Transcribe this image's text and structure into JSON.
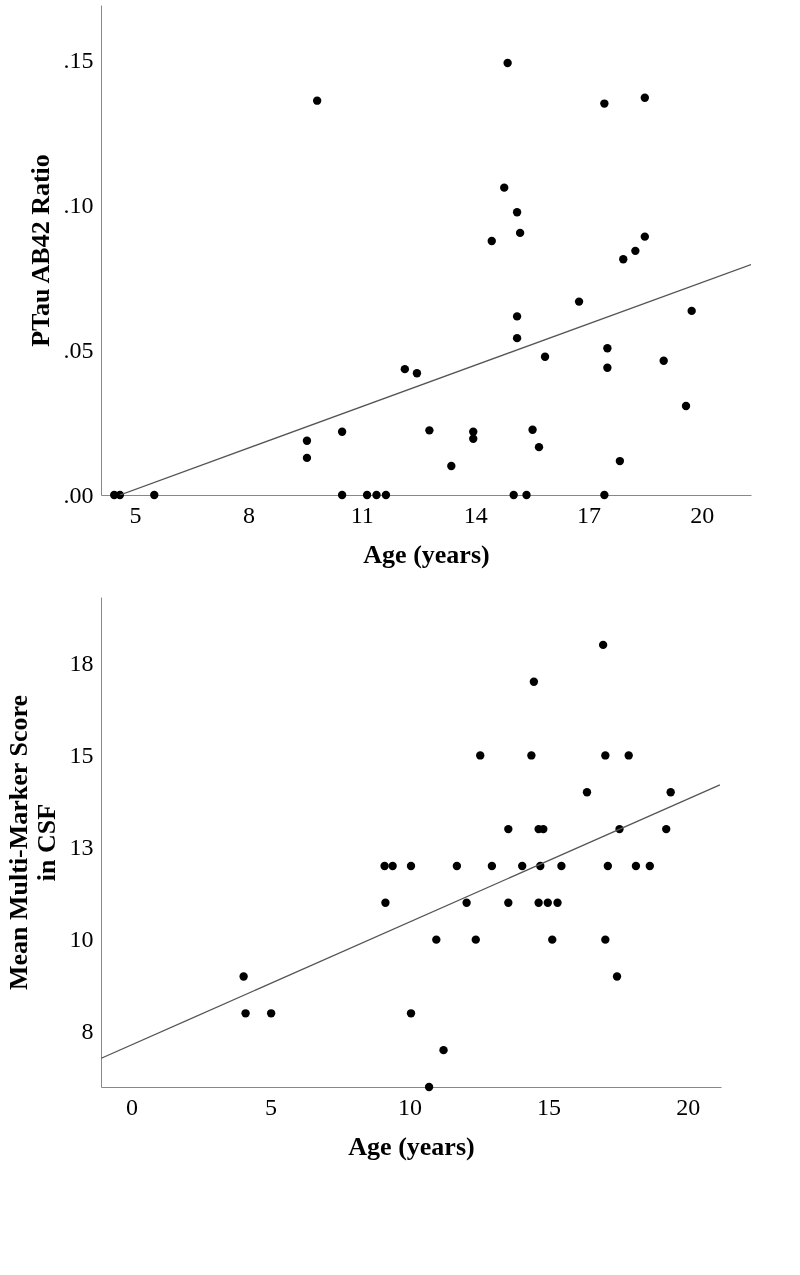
{
  "chart_data": [
    {
      "type": "scatter",
      "xlabel": "Age (years)",
      "ylabel": "PTau AB42 Ratio",
      "xlim": [
        4.1,
        21.3
      ],
      "ylim": [
        0,
        0.169
      ],
      "xticks": [
        5,
        8,
        11,
        14,
        17,
        20
      ],
      "yticks": [
        {
          "value": 0,
          "label": ".00"
        },
        {
          "value": 0.05,
          "label": ".05"
        },
        {
          "value": 0.1,
          "label": ".10"
        },
        {
          "value": 0.15,
          "label": ".15"
        }
      ],
      "grid": false,
      "series": [
        {
          "marker": "circle",
          "color": "#000000",
          "x": [
            4.45,
            4.6,
            5.51,
            10.48,
            11.14,
            11.39,
            11.64,
            15.02,
            15.36,
            17.42,
            9.82,
            14.86,
            17.42,
            18.49,
            14.77,
            15.11,
            15.19,
            14.44,
            18.49,
            18.24,
            17.92,
            16.75,
            19.73,
            15.11,
            15.11,
            15.85,
            17.5,
            17.5,
            18.99,
            12.14,
            12.46,
            19.58,
            9.55,
            9.55,
            10.48,
            12.79,
            13.95,
            13.95,
            13.37,
            15.52,
            15.69,
            17.83
          ],
          "values": [
            0,
            0,
            0,
            0,
            0,
            0,
            0,
            0,
            0,
            0,
            0.136,
            0.149,
            0.135,
            0.137,
            0.106,
            0.0975,
            0.0904,
            0.0876,
            0.0891,
            0.0842,
            0.0813,
            0.0667,
            0.0635,
            0.0616,
            0.0541,
            0.0477,
            0.0506,
            0.0439,
            0.0463,
            0.0434,
            0.042,
            0.0307,
            0.0187,
            0.0128,
            0.0218,
            0.0223,
            0.0218,
            0.0194,
            0.01,
            0.0225,
            0.0165,
            0.0117
          ]
        },
        {
          "type": "line",
          "marker": "none",
          "color": "#555555",
          "x": [
            4.6,
            21.3
          ],
          "values": [
            0,
            0.0795
          ]
        }
      ]
    },
    {
      "type": "scatter",
      "xlabel": "Age (years)",
      "ylabel": "Mean Multi-Marker Score in CSF",
      "xlim": [
        -1.1,
        21.2
      ],
      "ylim": [
        6,
        19.3
      ],
      "xticks": [
        0,
        5,
        10,
        15,
        20
      ],
      "yticks": [
        {
          "value": 7.5,
          "label": "8"
        },
        10,
        {
          "value": 12.5,
          "label": "13"
        },
        15,
        {
          "value": 17.5,
          "label": "18"
        }
      ],
      "grid": false,
      "series": [
        {
          "marker": "circle",
          "color": "#000000",
          "x": [
            16.96,
            14.47,
            12.54,
            14.38,
            17.04,
            17.88,
            16.38,
            19.39,
            13.55,
            14.64,
            14.81,
            17.55,
            19.23,
            9.1,
            9.39,
            10.05,
            11.7,
            12.96,
            14.05,
            14.7,
            15.46,
            17.13,
            18.14,
            18.64,
            9.13,
            12.05,
            13.55,
            14.64,
            14.97,
            15.32,
            10.96,
            12.38,
            15.13,
            17.04,
            4.03,
            17.46,
            4.1,
            5.02,
            10.05,
            11.22,
            10.7
          ],
          "values": [
            18,
            17,
            15,
            15,
            15,
            15,
            14,
            14,
            13,
            13,
            13,
            13,
            13,
            12,
            12,
            12,
            12,
            12,
            12,
            12,
            12,
            12,
            12,
            12,
            11,
            11,
            11,
            11,
            11,
            11,
            10,
            10,
            10,
            10,
            9,
            9,
            8,
            8,
            8,
            7,
            6
          ]
        },
        {
          "type": "line",
          "marker": "none",
          "color": "#555555",
          "x": [
            -1.09,
            21.16
          ],
          "values": [
            6.78,
            14.2
          ]
        }
      ]
    }
  ]
}
